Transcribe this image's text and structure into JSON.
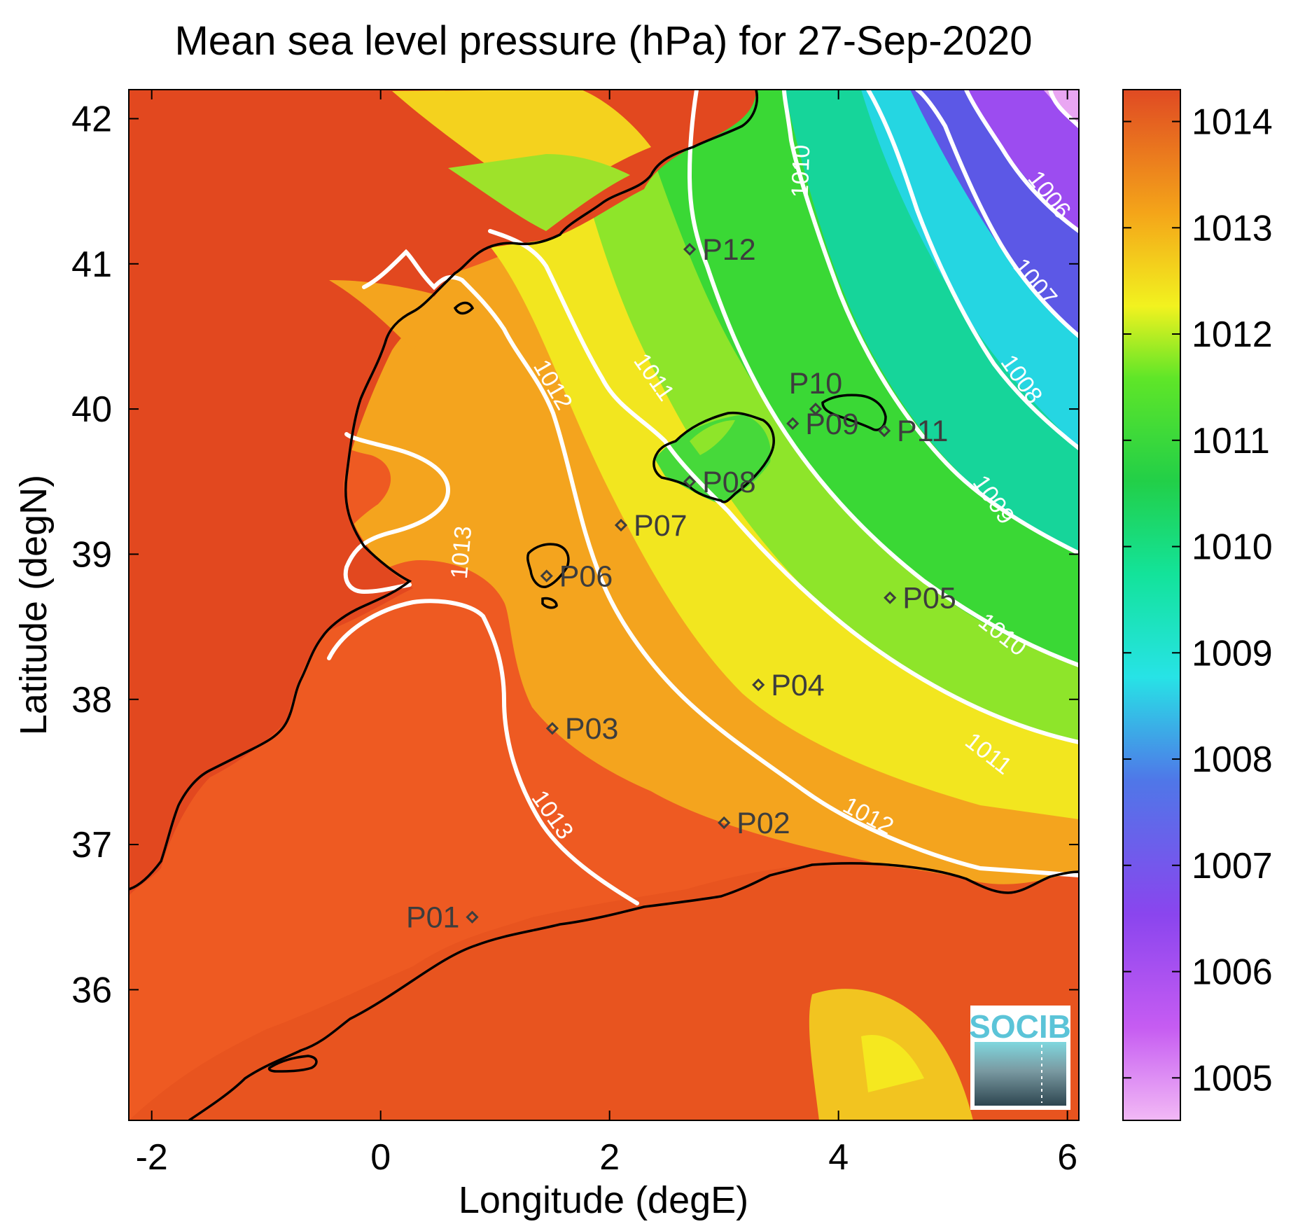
{
  "title": "Mean sea level pressure (hPa) for 27-Sep-2020",
  "xlabel": "Longitude (degE)",
  "ylabel": "Latitude (degN)",
  "xlim": [
    -2.2,
    6.1
  ],
  "ylim": [
    35.1,
    42.2
  ],
  "xticks": [
    -2,
    0,
    2,
    4,
    6
  ],
  "yticks": [
    36,
    37,
    38,
    39,
    40,
    41,
    42
  ],
  "colorbar": {
    "range": [
      1004.6,
      1014.3
    ],
    "ticks": [
      1005,
      1006,
      1007,
      1008,
      1009,
      1010,
      1011,
      1012,
      1013,
      1014
    ],
    "colors": {
      "1005": "#f2b9f5",
      "1006": "#b450f2",
      "1007": "#6a46e6",
      "1008": "#2fd9e8",
      "1009": "#14e6b0",
      "1010": "#21cf4d",
      "1011": "#47e62a",
      "1012": "#f0f01f",
      "1013": "#f39a18",
      "1014": "#e04a23"
    }
  },
  "stations": [
    {
      "id": "P01",
      "lon": 0.8,
      "lat": 36.5
    },
    {
      "id": "P02",
      "lon": 3.0,
      "lat": 37.15
    },
    {
      "id": "P03",
      "lon": 1.5,
      "lat": 37.8
    },
    {
      "id": "P04",
      "lon": 3.3,
      "lat": 38.1
    },
    {
      "id": "P05",
      "lon": 4.45,
      "lat": 38.7
    },
    {
      "id": "P06",
      "lon": 1.45,
      "lat": 38.85
    },
    {
      "id": "P07",
      "lon": 2.1,
      "lat": 39.2
    },
    {
      "id": "P08",
      "lon": 2.7,
      "lat": 39.5
    },
    {
      "id": "P09",
      "lon": 3.6,
      "lat": 39.9
    },
    {
      "id": "P10",
      "lon": 3.8,
      "lat": 40.0
    },
    {
      "id": "P11",
      "lon": 4.4,
      "lat": 39.85
    },
    {
      "id": "P12",
      "lon": 2.7,
      "lat": 41.1
    }
  ],
  "contour_labels": [
    "1006",
    "1007",
    "1008",
    "1009",
    "1010",
    "1010",
    "1011",
    "1011",
    "1012",
    "1012",
    "1013",
    "1013"
  ],
  "logo_text": "SOCIB"
}
